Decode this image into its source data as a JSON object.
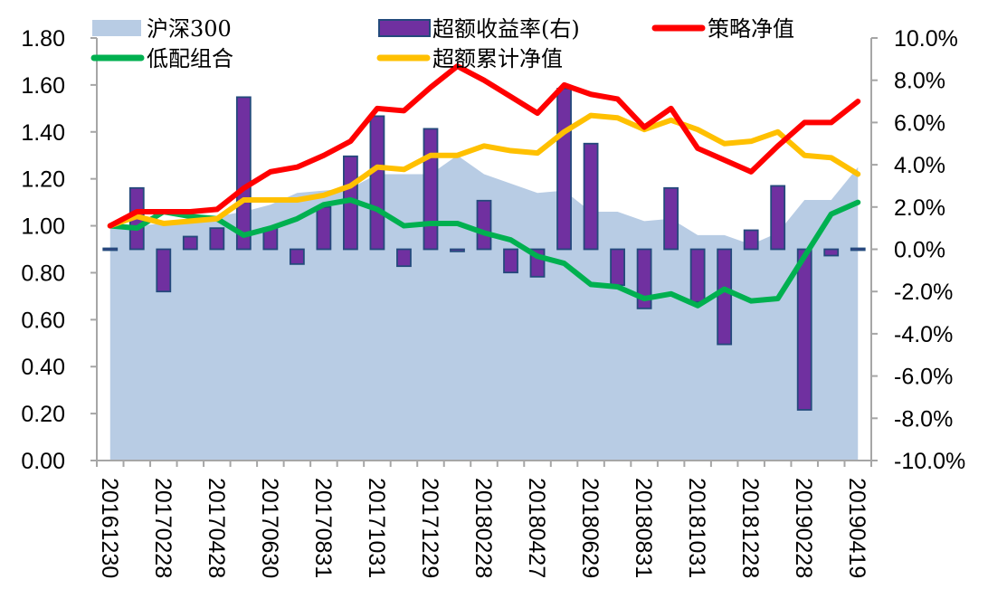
{
  "chart_data": {
    "type": "bar+line+area",
    "title": "",
    "categories": [
      "20161230",
      "",
      "20170228",
      "",
      "20170428",
      "",
      "20170630",
      "",
      "20170831",
      "",
      "20171031",
      "",
      "20171229",
      "",
      "20180228",
      "",
      "20180427",
      "",
      "20180629",
      "",
      "20180831",
      "",
      "20181031",
      "",
      "20181228",
      "",
      "20190228",
      "",
      "20190419"
    ],
    "x_tick_labels": [
      "20161230",
      "20170228",
      "20170428",
      "20170630",
      "20170831",
      "20171031",
      "20171229",
      "20180228",
      "20180427",
      "20180629",
      "20180831",
      "20181031",
      "20181228",
      "20190228",
      "20190419"
    ],
    "left_axis": {
      "ylim": [
        0,
        1.8
      ],
      "ticks": [
        "0.00",
        "0.20",
        "0.40",
        "0.60",
        "0.80",
        "1.00",
        "1.20",
        "1.40",
        "1.60",
        "1.80"
      ]
    },
    "right_axis": {
      "ylim": [
        -10,
        10
      ],
      "unit": "%",
      "ticks": [
        "-10.0%",
        "-8.0%",
        "-6.0%",
        "-4.0%",
        "-2.0%",
        "0.0%",
        "2.0%",
        "4.0%",
        "6.0%",
        "8.0%",
        "10.0%"
      ]
    },
    "series": [
      {
        "name": "沪深300",
        "type": "area",
        "axis": "left",
        "color": "#B8CCE4",
        "values": [
          0.99,
          1.0,
          1.01,
          1.03,
          1.04,
          1.06,
          1.09,
          1.14,
          1.15,
          1.16,
          1.22,
          1.22,
          1.22,
          1.3,
          1.22,
          1.18,
          1.14,
          1.15,
          1.06,
          1.06,
          1.02,
          1.03,
          0.96,
          0.96,
          0.92,
          0.97,
          1.11,
          1.11,
          1.25
        ]
      },
      {
        "name": "超额收益率(右)",
        "type": "bar",
        "axis": "right",
        "color": "#7030A0",
        "border": "#244A7C",
        "values": [
          0.0,
          2.9,
          -2.0,
          0.6,
          1.0,
          7.2,
          1.0,
          -0.7,
          2.0,
          4.4,
          6.3,
          -0.8,
          5.7,
          -0.1,
          2.3,
          -1.1,
          -1.3,
          7.6,
          5.0,
          -1.7,
          -2.8,
          2.9,
          -2.5,
          -4.5,
          0.9,
          3.0,
          -7.6,
          -0.3,
          0.0
        ]
      },
      {
        "name": "策略净值",
        "type": "line",
        "axis": "left",
        "color": "#FF0000",
        "values": [
          1.0,
          1.06,
          1.06,
          1.06,
          1.07,
          1.16,
          1.23,
          1.25,
          1.3,
          1.36,
          1.5,
          1.49,
          1.59,
          1.68,
          1.62,
          1.55,
          1.48,
          1.6,
          1.56,
          1.54,
          1.42,
          1.5,
          1.33,
          1.28,
          1.23,
          1.34,
          1.44,
          1.44,
          1.53
        ]
      },
      {
        "name": "低配组合",
        "type": "line",
        "axis": "left",
        "color": "#00B050",
        "values": [
          1.0,
          0.99,
          1.06,
          1.04,
          1.03,
          0.96,
          0.99,
          1.03,
          1.09,
          1.11,
          1.07,
          1.0,
          1.01,
          1.01,
          0.97,
          0.94,
          0.87,
          0.84,
          0.75,
          0.74,
          0.69,
          0.71,
          0.66,
          0.73,
          0.68,
          0.69,
          0.87,
          1.05,
          1.1
        ]
      },
      {
        "name": "超额累计净值",
        "type": "line",
        "axis": "left",
        "color": "#FFC000",
        "values": [
          1.0,
          1.04,
          1.01,
          1.02,
          1.03,
          1.11,
          1.11,
          1.11,
          1.13,
          1.17,
          1.25,
          1.24,
          1.3,
          1.3,
          1.34,
          1.32,
          1.31,
          1.4,
          1.47,
          1.46,
          1.41,
          1.45,
          1.41,
          1.35,
          1.36,
          1.4,
          1.3,
          1.29,
          1.22
        ]
      }
    ],
    "legend": {
      "placement": "top",
      "items": [
        {
          "label": "沪深300",
          "kind": "area",
          "color": "#B8CCE4"
        },
        {
          "label": "超额收益率(右)",
          "kind": "bar",
          "color": "#7030A0"
        },
        {
          "label": "策略净值",
          "kind": "line",
          "color": "#FF0000"
        },
        {
          "label": "低配组合",
          "kind": "line",
          "color": "#00B050"
        },
        {
          "label": "超额累计净值",
          "kind": "line",
          "color": "#FFC000"
        }
      ]
    },
    "grid": false,
    "xlabel": "",
    "ylabel": ""
  }
}
